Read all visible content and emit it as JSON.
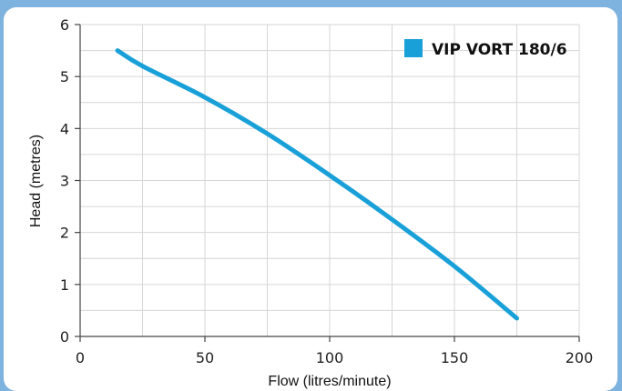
{
  "chart_data": {
    "type": "line",
    "xlabel": "Flow (litres/minute)",
    "ylabel": "Head (metres)",
    "xlim": [
      0,
      200
    ],
    "ylim": [
      0,
      6
    ],
    "x_ticks": [
      "0",
      "50",
      "100",
      "150",
      "200"
    ],
    "y_ticks": [
      "0",
      "1",
      "2",
      "3",
      "4",
      "5",
      "6"
    ],
    "grid": true,
    "legend_position": "top-right",
    "series": [
      {
        "name": "VIP VORT 180/6",
        "color": "#1aa0d8",
        "x": [
          15,
          25,
          50,
          75,
          100,
          125,
          150,
          175
        ],
        "y": [
          5.5,
          5.2,
          4.6,
          3.9,
          3.1,
          2.25,
          1.35,
          0.35
        ]
      }
    ]
  }
}
